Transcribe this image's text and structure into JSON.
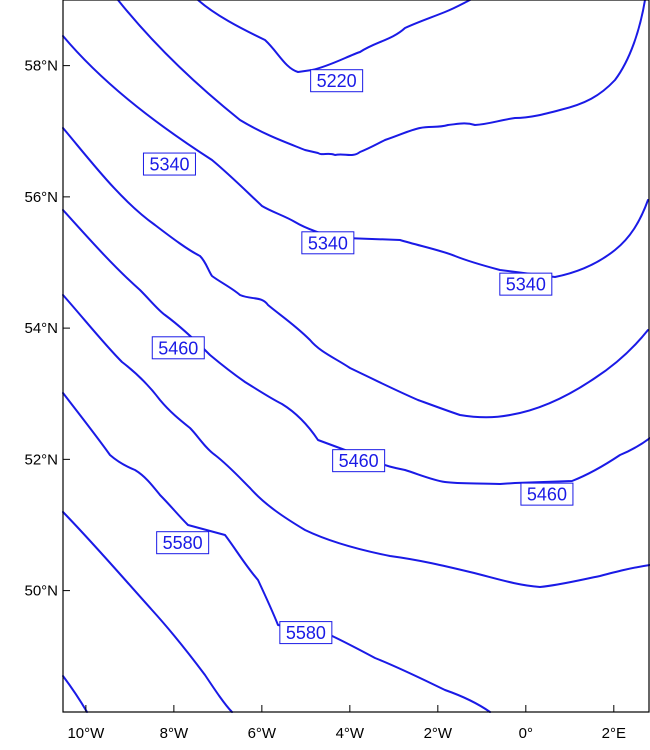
{
  "map": {
    "line_color": "#1a1ae6",
    "frame_color": "#000000",
    "label_box_fill": "#ffffff",
    "y_axis": {
      "ticks": [
        {
          "value": 58,
          "label": "58°N"
        },
        {
          "value": 56,
          "label": "56°N"
        },
        {
          "value": 54,
          "label": "54°N"
        },
        {
          "value": 52,
          "label": "52°N"
        },
        {
          "value": 50,
          "label": "50°N"
        }
      ]
    },
    "x_axis": {
      "ticks": [
        {
          "value": -10,
          "label": "10°W"
        },
        {
          "value": -8,
          "label": "8°W"
        },
        {
          "value": -6,
          "label": "6°W"
        },
        {
          "value": -4,
          "label": "4°W"
        },
        {
          "value": -2,
          "label": "2°W"
        },
        {
          "value": 0,
          "label": "0°"
        },
        {
          "value": 2,
          "label": "2°E"
        }
      ]
    },
    "contour_labels": [
      {
        "text": "5220",
        "lon": -4.3,
        "lat": 57.77
      },
      {
        "text": "5340",
        "lon": -8.1,
        "lat": 56.5
      },
      {
        "text": "5340",
        "lon": -4.5,
        "lat": 55.3
      },
      {
        "text": "5340",
        "lon": 0.0,
        "lat": 54.67
      },
      {
        "text": "5460",
        "lon": -7.9,
        "lat": 53.7
      },
      {
        "text": "5460",
        "lon": -3.8,
        "lat": 51.98
      },
      {
        "text": "5460",
        "lon": 0.48,
        "lat": 51.47
      },
      {
        "text": "5580",
        "lon": -7.8,
        "lat": 50.73
      },
      {
        "text": "5580",
        "lon": -5.0,
        "lat": 49.36
      }
    ]
  }
}
